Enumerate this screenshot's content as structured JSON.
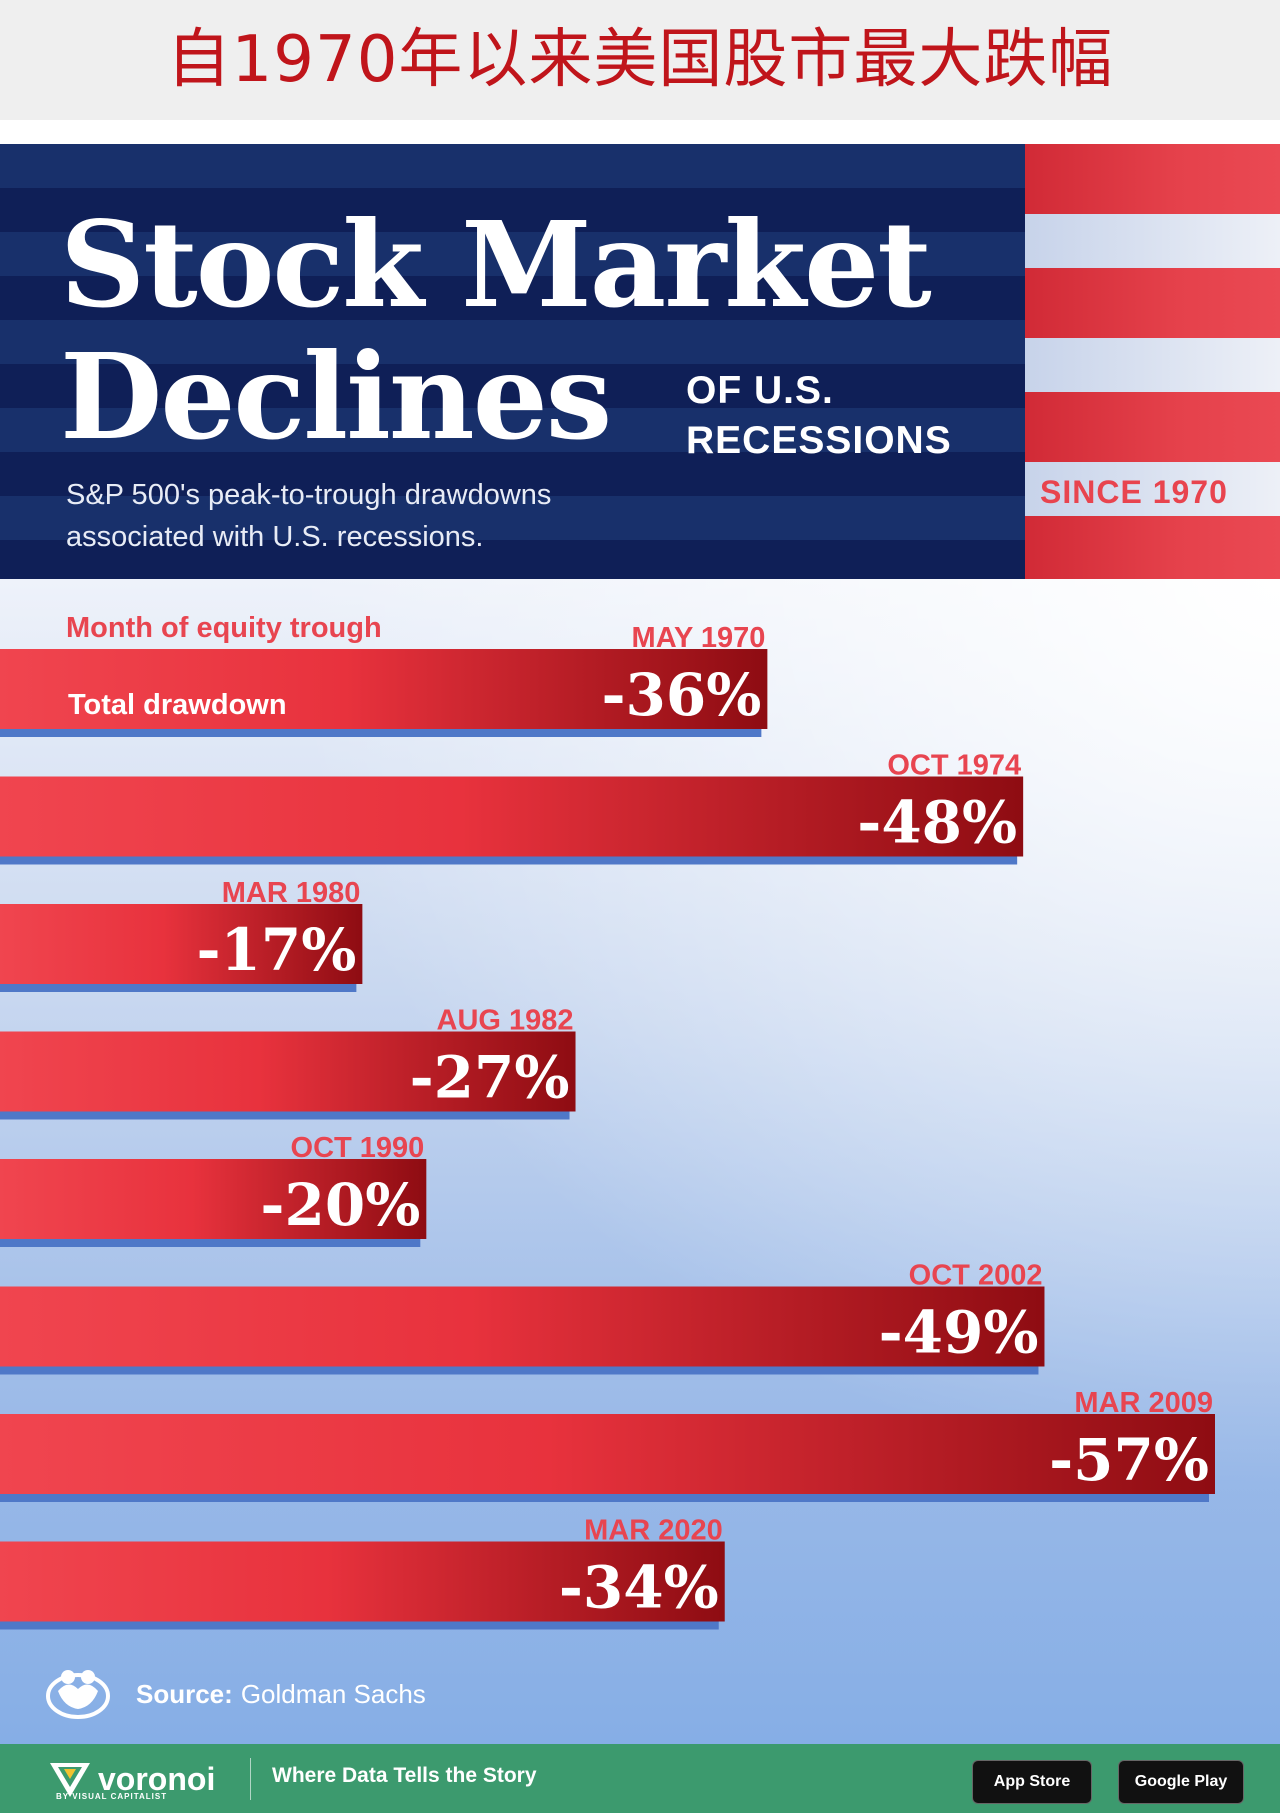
{
  "banner": {
    "title": "自1970年以来美国股市最大跌幅"
  },
  "header": {
    "title_line1": "Stock Market",
    "title_line2": "Declines",
    "title_side_1": "OF U.S.",
    "title_side_2": "RECESSIONS",
    "subtitle_line1": "S&P 500's peak-to-trough drawdowns",
    "subtitle_line2": "associated with U.S. recessions.",
    "since": "SINCE 1970"
  },
  "legend": {
    "month_label": "Month of equity trough",
    "total_label": "Total drawdown"
  },
  "chart_data": {
    "type": "bar",
    "orientation": "horizontal",
    "title": "Stock Market Declines of U.S. Recessions Since 1970",
    "subtitle": "S&P 500's peak-to-trough drawdowns associated with U.S. recessions.",
    "categories": [
      "MAY 1970",
      "OCT 1974",
      "MAR 1980",
      "AUG 1982",
      "OCT 1990",
      "OCT 2002",
      "MAR 2009",
      "MAR 2020"
    ],
    "values": [
      -36,
      -48,
      -17,
      -27,
      -20,
      -49,
      -57,
      -34
    ],
    "value_labels": [
      "-36%",
      "-48%",
      "-17%",
      "-27%",
      "-20%",
      "-49%",
      "-57%",
      "-34%"
    ],
    "unit": "%",
    "xlim": [
      0,
      -60
    ],
    "grid": false,
    "colors": {
      "bar_light": "#f0454f",
      "bar_dark": "#8e0c12",
      "bar_shadow": "#4f78c8",
      "label": "#e84550"
    }
  },
  "source": {
    "label": "Source:",
    "value": "Goldman Sachs"
  },
  "footer": {
    "brand": "voronoi",
    "brand_sub": "BY VISUAL CAPITALIST",
    "tagline": "Where Data Tells the Story",
    "app_store": "App Store",
    "google_play": "Google Play"
  },
  "colors": {
    "banner_text": "#c0151b",
    "header_bg": "#0f1f57",
    "footer_bg": "#3c9a6e",
    "flag_red": "#e5414b"
  }
}
